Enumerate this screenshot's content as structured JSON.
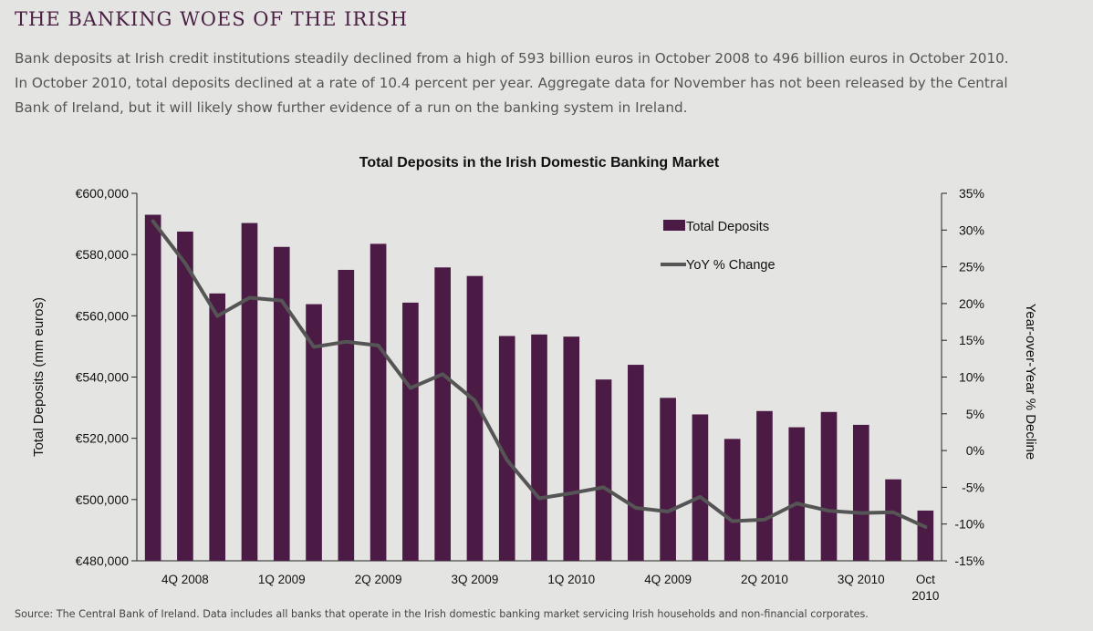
{
  "header": {
    "title": "THE BANKING WOES OF THE IRISH",
    "intro_lines": [
      "Bank deposits at Irish credit institutions steadily declined from a high of 593 billion euros in October 2008 to 496 billion euros in October 2010.",
      "In October 2010, total deposits declined at a rate of 10.4 percent per year. Aggregate data for November has not been released by the Central",
      "Bank of Ireland, but it will likely show further evidence of a run on the banking system in Ireland."
    ]
  },
  "footer": {
    "source": "Source: The Central Bank of Ireland. Data includes all banks that operate in the Irish domestic banking market servicing Irish households and non-financial corporates."
  },
  "colors": {
    "bar": "#4b1a45",
    "line": "#555555",
    "heading": "#4a1f43"
  },
  "chart_data": {
    "type": "bar",
    "title": "Total Deposits  in the Irish Domestic Banking Market",
    "ylabel": "Total Deposits (mm euros)",
    "y2label": "Year-over-Year % Decline",
    "ylim": [
      480000,
      600000
    ],
    "y2lim": [
      -15,
      35
    ],
    "y_ticks": [
      "€480,000",
      "€500,000",
      "€520,000",
      "€540,000",
      "€560,000",
      "€580,000",
      "€600,000"
    ],
    "y2_ticks": [
      "-15%",
      "-10%",
      "-5%",
      "0%",
      "5%",
      "10%",
      "15%",
      "20%",
      "25%",
      "30%",
      "35%"
    ],
    "x_tick_labels": [
      {
        "index": 1,
        "lines": [
          "4Q 2008"
        ]
      },
      {
        "index": 4,
        "lines": [
          "1Q 2009"
        ]
      },
      {
        "index": 7,
        "lines": [
          "2Q 2009"
        ]
      },
      {
        "index": 10,
        "lines": [
          "3Q 2009"
        ]
      },
      {
        "index": 13,
        "lines": [
          "1Q 2010"
        ]
      },
      {
        "index": 16,
        "lines": [
          "4Q 2009"
        ]
      },
      {
        "index": 19,
        "lines": [
          "2Q 2010"
        ]
      },
      {
        "index": 22,
        "lines": [
          "3Q 2010"
        ]
      },
      {
        "index": 24,
        "lines": [
          "Oct",
          "2010"
        ]
      }
    ],
    "grid": false,
    "legend_position": "top-right",
    "series": [
      {
        "name": "Total Deposits",
        "type": "bar",
        "axis": "left",
        "values": [
          593000,
          587500,
          567300,
          590300,
          582500,
          563800,
          575000,
          583500,
          564300,
          575800,
          573000,
          553400,
          553900,
          553200,
          539200,
          544000,
          533200,
          527800,
          519800,
          528900,
          523600,
          528600,
          524400,
          506600,
          496400
        ]
      },
      {
        "name": "YoY % Change",
        "type": "line",
        "axis": "right",
        "values": [
          31.2,
          25.5,
          18.3,
          20.8,
          20.4,
          14.1,
          14.8,
          14.3,
          8.5,
          10.4,
          6.8,
          -1.3,
          -6.5,
          -5.8,
          -5.0,
          -7.8,
          -8.3,
          -6.3,
          -9.6,
          -9.4,
          -7.2,
          -8.2,
          -8.5,
          -8.4,
          -10.4
        ]
      }
    ]
  }
}
